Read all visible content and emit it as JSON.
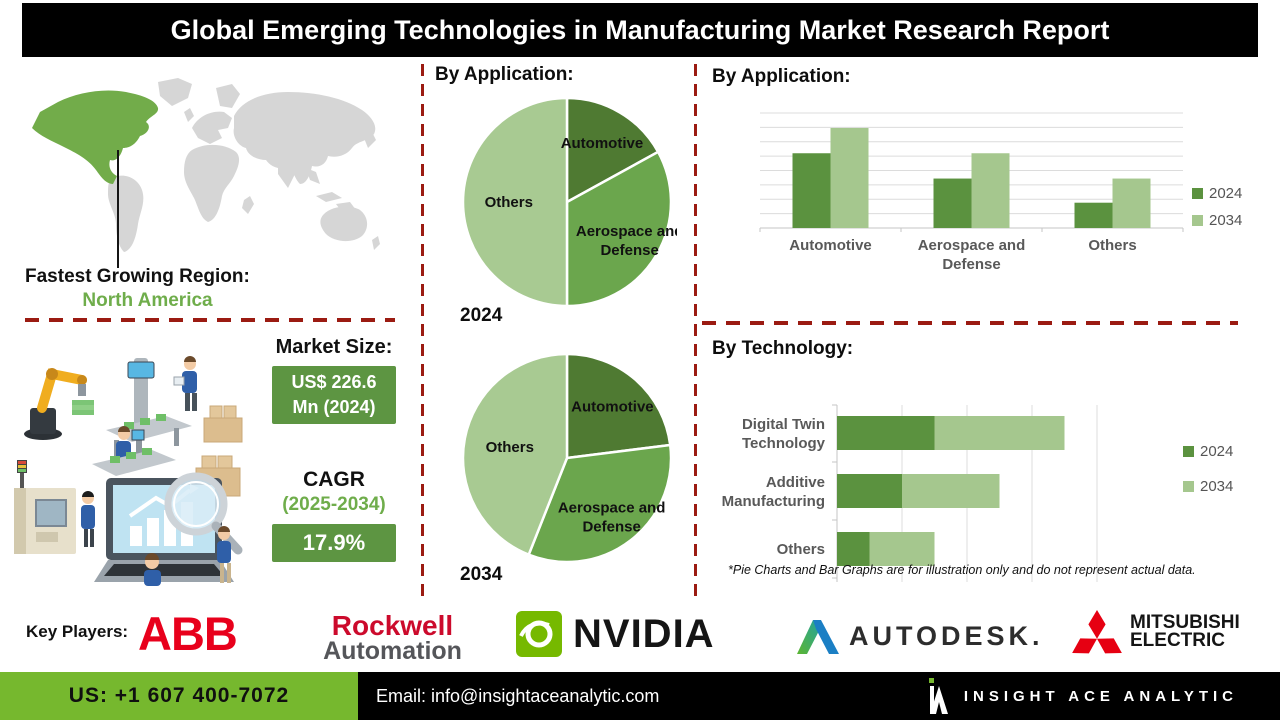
{
  "banner": {
    "title": "Global Emerging Technologies in Manufacturing Market Research Report"
  },
  "region": {
    "label": "Fastest Growing Region:",
    "value": "North America"
  },
  "market": {
    "size_label": "Market Size:",
    "size_line1": "US$ 226.6",
    "size_line2": "Mn (2024)",
    "cagr_label": "CAGR",
    "cagr_period": "(2025-2034)",
    "cagr_value": "17.9%"
  },
  "chart_data": [
    {
      "id": "pie-2024",
      "type": "pie",
      "title": "By Application:",
      "year_label": "2024",
      "labels": [
        "Automotive",
        "Aerospace and Defense",
        "Others"
      ],
      "values": [
        17,
        33,
        50
      ],
      "colors": [
        "#4f7a32",
        "#6ba64d",
        "#a8ca92"
      ],
      "legend_position": "none"
    },
    {
      "id": "pie-2034",
      "type": "pie",
      "year_label": "2034",
      "labels": [
        "Automotive",
        "Aerospace and Defense",
        "Others"
      ],
      "values": [
        23,
        33,
        44
      ],
      "colors": [
        "#4f7a32",
        "#6ba64d",
        "#a8ca92"
      ],
      "legend_position": "none"
    },
    {
      "id": "bar-application",
      "type": "bar",
      "title": "By Application:",
      "categories": [
        "Automotive",
        "Aerospace and Defense",
        "Others"
      ],
      "series": [
        {
          "name": "2024",
          "color": "#5b923f",
          "values": [
            65,
            43,
            22
          ]
        },
        {
          "name": "2034",
          "color": "#a5c78e",
          "values": [
            87,
            65,
            43
          ]
        }
      ],
      "ylim": [
        0,
        100
      ],
      "grid": "horizontal",
      "legend_position": "right"
    },
    {
      "id": "bar-technology",
      "type": "bar-horizontal-stacked",
      "title": "By Technology:",
      "categories": [
        "Digital Twin Technology",
        "Additive Manufacturing",
        "Others"
      ],
      "series": [
        {
          "name": "2024",
          "color": "#5b923f",
          "values": [
            1.5,
            1.0,
            0.5
          ]
        },
        {
          "name": "2034",
          "color": "#a5c78e",
          "values": [
            2.0,
            1.5,
            1.0
          ]
        }
      ],
      "xlim": [
        0,
        5.3
      ],
      "gridline_step": 1,
      "grid": "vertical",
      "legend_position": "right"
    }
  ],
  "disclaimer": "*Pie Charts and Bar Graphs are for illustration only and do not represent actual data.",
  "key_players": {
    "label": "Key Players:",
    "companies": [
      "ABB",
      "Rockwell Automation",
      "NVIDIA",
      "AUTODESK",
      "MITSUBISHI ELECTRIC"
    ],
    "abb": "ABB",
    "rockwell_line1": "Rockwell",
    "rockwell_line2": "Automation",
    "nvidia": "NVIDIA",
    "autodesk": "AUTODESK.",
    "mitsubishi_line1": "MITSUBISHI",
    "mitsubishi_line2": "ELECTRIC"
  },
  "footer": {
    "phone": "US: +1 607 400-7072",
    "email": "Email: info@insightaceanalytic.com",
    "brand": "INSIGHT ACE ANALYTIC"
  },
  "colors": {
    "accent_green": "#6fad4b",
    "box_green": "#5d9542",
    "footer_green": "#76b82e",
    "dashed_red": "#9b1b12",
    "map_highlight": "#72ac4a",
    "series_2024": "#5b923f",
    "series_2034": "#a5c78e"
  }
}
